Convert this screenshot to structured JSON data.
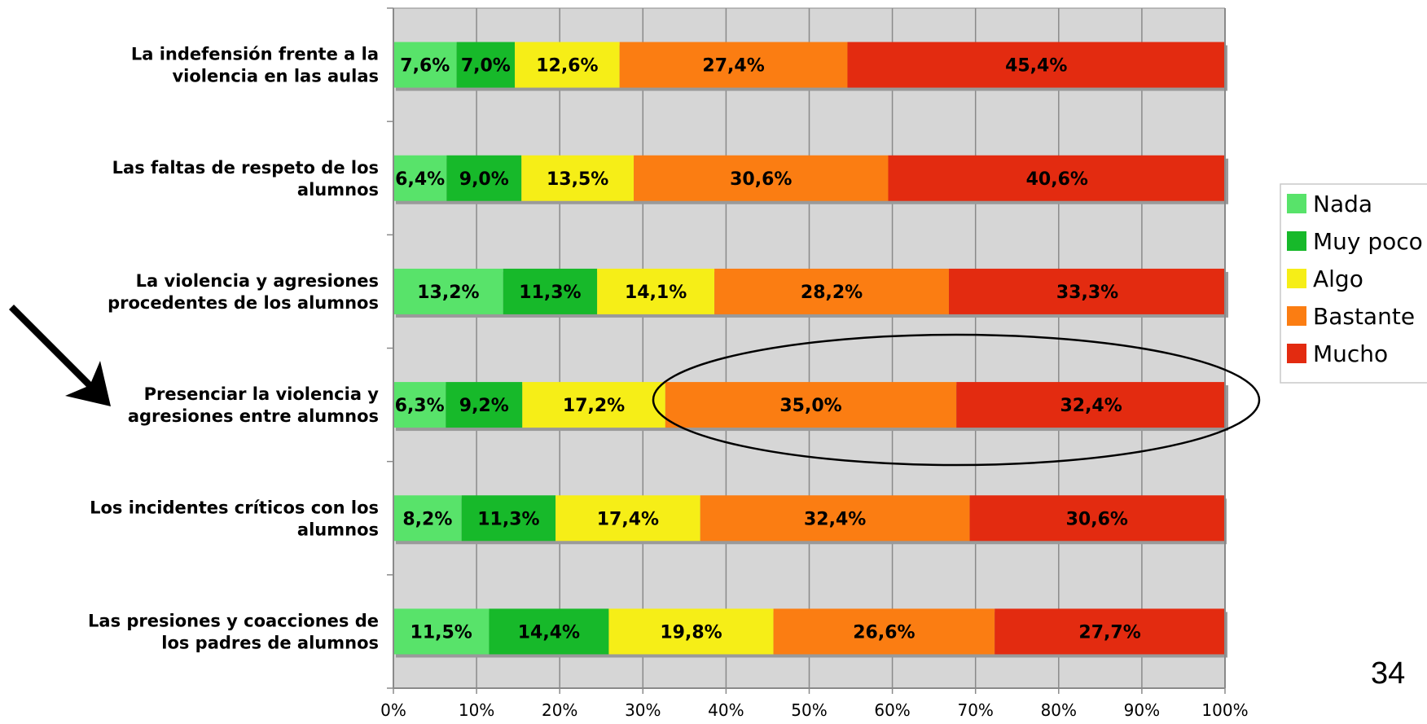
{
  "colors": {
    "plot_bg": "#d6d6d6",
    "grid": "#8a8a8a",
    "axis": "#8a8a8a",
    "shadow": "#9a9a9a"
  },
  "page_number": "34",
  "annotations": {
    "arrow_icon": "right-down-arrow-icon",
    "highlight_shape": "ellipse"
  },
  "chart_data": {
    "type": "bar",
    "orientation": "horizontal",
    "stacked": true,
    "percent_scale": true,
    "categories": [
      "La indefensión frente a la violencia en las aulas",
      "Las faltas de respeto de los alumnos",
      "La violencia y agresiones procedentes de los alumnos",
      "Presenciar la violencia y agresiones entre alumnos",
      "Los incidentes críticos con los alumnos",
      "Las presiones y coacciones de los padres de alumnos"
    ],
    "category_lines": [
      [
        "La indefensión frente a la",
        "violencia en las aulas"
      ],
      [
        "Las faltas de respeto de los",
        "alumnos"
      ],
      [
        "La violencia y agresiones",
        "procedentes de los alumnos"
      ],
      [
        "Presenciar la violencia y",
        "agresiones entre alumnos"
      ],
      [
        "Los incidentes críticos con los",
        "alumnos"
      ],
      [
        "Las presiones y coacciones de",
        "los padres de alumnos"
      ]
    ],
    "series": [
      {
        "name": "Nada",
        "color": "#58e36a",
        "values": [
          7.6,
          6.4,
          13.2,
          6.3,
          8.2,
          11.5
        ],
        "labels": [
          "7,6%",
          "6,4%",
          "13,2%",
          "6,3%",
          "8,2%",
          "11,5%"
        ]
      },
      {
        "name": "Muy poco",
        "color": "#17b92a",
        "values": [
          7.0,
          9.0,
          11.3,
          9.2,
          11.3,
          14.4
        ],
        "labels": [
          "7,0%",
          "9,0%",
          "11,3%",
          "9,2%",
          "11,3%",
          "14,4%"
        ]
      },
      {
        "name": "Algo",
        "color": "#f6ee17",
        "values": [
          12.6,
          13.5,
          14.1,
          17.2,
          17.4,
          19.8
        ],
        "labels": [
          "12,6%",
          "13,5%",
          "14,1%",
          "17,2%",
          "17,4%",
          "19,8%"
        ]
      },
      {
        "name": "Bastante",
        "color": "#fb7d12",
        "values": [
          27.4,
          30.6,
          28.2,
          35.0,
          32.4,
          26.6
        ],
        "labels": [
          "27,4%",
          "30,6%",
          "28,2%",
          "35,0%",
          "32,4%",
          "26,6%"
        ]
      },
      {
        "name": "Mucho",
        "color": "#e32b10",
        "values": [
          45.4,
          40.6,
          33.3,
          32.4,
          30.6,
          27.7
        ],
        "labels": [
          "45,4%",
          "40,6%",
          "33,3%",
          "32,4%",
          "30,6%",
          "27,7%"
        ]
      }
    ],
    "x_ticks": [
      "0%",
      "10%",
      "20%",
      "30%",
      "40%",
      "50%",
      "60%",
      "70%",
      "80%",
      "90%",
      "100%"
    ],
    "xlim": [
      0,
      100
    ],
    "grid": true,
    "legend_position": "right"
  }
}
